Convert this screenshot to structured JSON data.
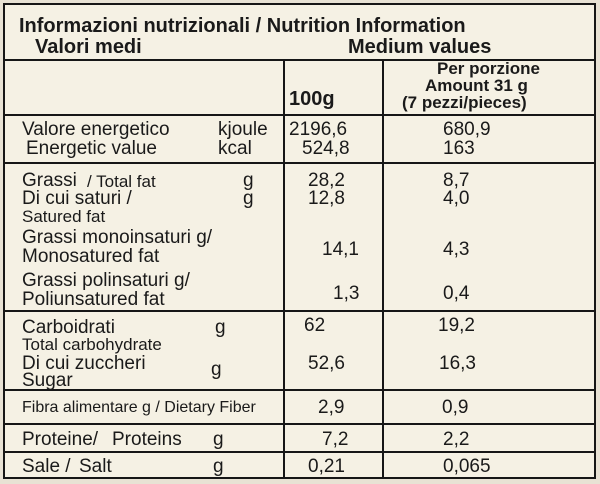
{
  "header": {
    "title": "Informazioni nutrizionali / Nutrition Information",
    "valori_medi": "Valori medi",
    "medium_values": "Medium values"
  },
  "columns": {
    "per100": "100g",
    "portion_line1": "Per porzione",
    "portion_line2": "Amount 31 g",
    "portion_line3": "(7 pezzi/pieces)"
  },
  "rows": {
    "energy": {
      "label_it": "Valore energetico",
      "unit_kj": "kjoule",
      "per100_kj": "2196,6",
      "portion_kj": "680,9",
      "label_en": "Energetic value",
      "unit_kcal": "kcal",
      "per100_kcal": "524,8",
      "portion_kcal": "163"
    },
    "fat": {
      "label_it": "Grassi",
      "label_en": "/ Total fat",
      "unit": "g",
      "per100": "28,2",
      "portion": "8,7"
    },
    "saturated": {
      "label_it": "Di cui saturi /",
      "label_en": "Satured fat",
      "unit": "g",
      "per100": "12,8",
      "portion": "4,0"
    },
    "mono": {
      "label_it": "Grassi monoinsaturi g/",
      "label_en": "Monosatured fat",
      "per100": "14,1",
      "portion": "4,3"
    },
    "poly": {
      "label_it": "Grassi polinsaturi g/",
      "label_en": "Poliunsatured fat",
      "per100": "1,3",
      "portion": "0,4"
    },
    "carbs": {
      "label_it": "Carboidrati",
      "unit": "g",
      "label_en": "Total carbohydrate",
      "per100": "62",
      "portion": "19,2"
    },
    "sugars": {
      "label_it": "Di cui zuccheri",
      "label_en": "Sugar",
      "unit": "g",
      "per100": "52,6",
      "portion": "16,3"
    },
    "fiber": {
      "label": "Fibra alimentare g / Dietary Fiber",
      "per100": "2,9",
      "portion": "0,9"
    },
    "protein": {
      "label_it": "Proteine/",
      "label_en": "Proteins",
      "unit": "g",
      "per100": "7,2",
      "portion": "2,2"
    },
    "salt": {
      "label_it": "Sale /",
      "label_en": "Salt",
      "unit": "g",
      "per100": "0,21",
      "portion": "0,065"
    }
  }
}
